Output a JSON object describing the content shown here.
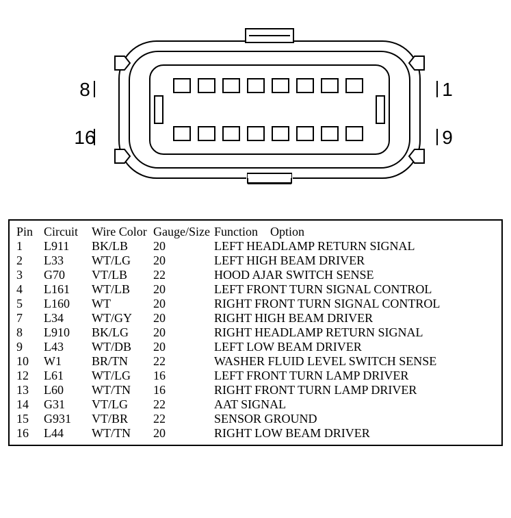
{
  "diagram": {
    "stroke": "#000000",
    "stroke_width": 2,
    "fill": "#ffffff",
    "pin_labels": {
      "top_left": "8",
      "bottom_left": "16",
      "top_right": "1",
      "bottom_right": "9"
    },
    "rows": 2,
    "cols": 8,
    "label_font": "Arial, Helvetica, sans-serif",
    "label_size": 28
  },
  "table": {
    "headers": {
      "pin": "Pin",
      "circuit": "Circuit",
      "wire_color": "Wire Color",
      "gauge_size": "Gauge/Size",
      "function": "Function",
      "option": "Option"
    },
    "font_size": 18,
    "border_color": "#000000",
    "rows": [
      {
        "pin": "1",
        "circuit": "L911",
        "wire": "BK/LB",
        "gauge": "20",
        "func": "LEFT HEADLAMP RETURN SIGNAL"
      },
      {
        "pin": "2",
        "circuit": "L33",
        "wire": "WT/LG",
        "gauge": "20",
        "func": "LEFT HIGH BEAM DRIVER"
      },
      {
        "pin": "3",
        "circuit": "G70",
        "wire": "VT/LB",
        "gauge": "22",
        "func": "HOOD AJAR SWITCH SENSE"
      },
      {
        "pin": "4",
        "circuit": "L161",
        "wire": "WT/LB",
        "gauge": "20",
        "func": "LEFT FRONT TURN SIGNAL CONTROL"
      },
      {
        "pin": "5",
        "circuit": "L160",
        "wire": "WT",
        "gauge": "20",
        "func": "RIGHT FRONT TURN SIGNAL CONTROL"
      },
      {
        "pin": "7",
        "circuit": "L34",
        "wire": "WT/GY",
        "gauge": "20",
        "func": "RIGHT HIGH BEAM DRIVER"
      },
      {
        "pin": "8",
        "circuit": "L910",
        "wire": "BK/LG",
        "gauge": "20",
        "func": "RIGHT HEADLAMP RETURN SIGNAL"
      },
      {
        "pin": "9",
        "circuit": "L43",
        "wire": "WT/DB",
        "gauge": "20",
        "func": "LEFT LOW BEAM DRIVER"
      },
      {
        "pin": "10",
        "circuit": "W1",
        "wire": "BR/TN",
        "gauge": "22",
        "func": "WASHER FLUID LEVEL SWITCH SENSE"
      },
      {
        "pin": "12",
        "circuit": "L61",
        "wire": "WT/LG",
        "gauge": "16",
        "func": "LEFT FRONT TURN LAMP DRIVER"
      },
      {
        "pin": "13",
        "circuit": "L60",
        "wire": "WT/TN",
        "gauge": "16",
        "func": "RIGHT FRONT TURN LAMP DRIVER"
      },
      {
        "pin": "14",
        "circuit": "G31",
        "wire": "VT/LG",
        "gauge": "22",
        "func": "AAT SIGNAL"
      },
      {
        "pin": "15",
        "circuit": "G931",
        "wire": "VT/BR",
        "gauge": "22",
        "func": "SENSOR GROUND"
      },
      {
        "pin": "16",
        "circuit": "L44",
        "wire": "WT/TN",
        "gauge": "20",
        "func": "RIGHT LOW BEAM DRIVER"
      }
    ]
  }
}
